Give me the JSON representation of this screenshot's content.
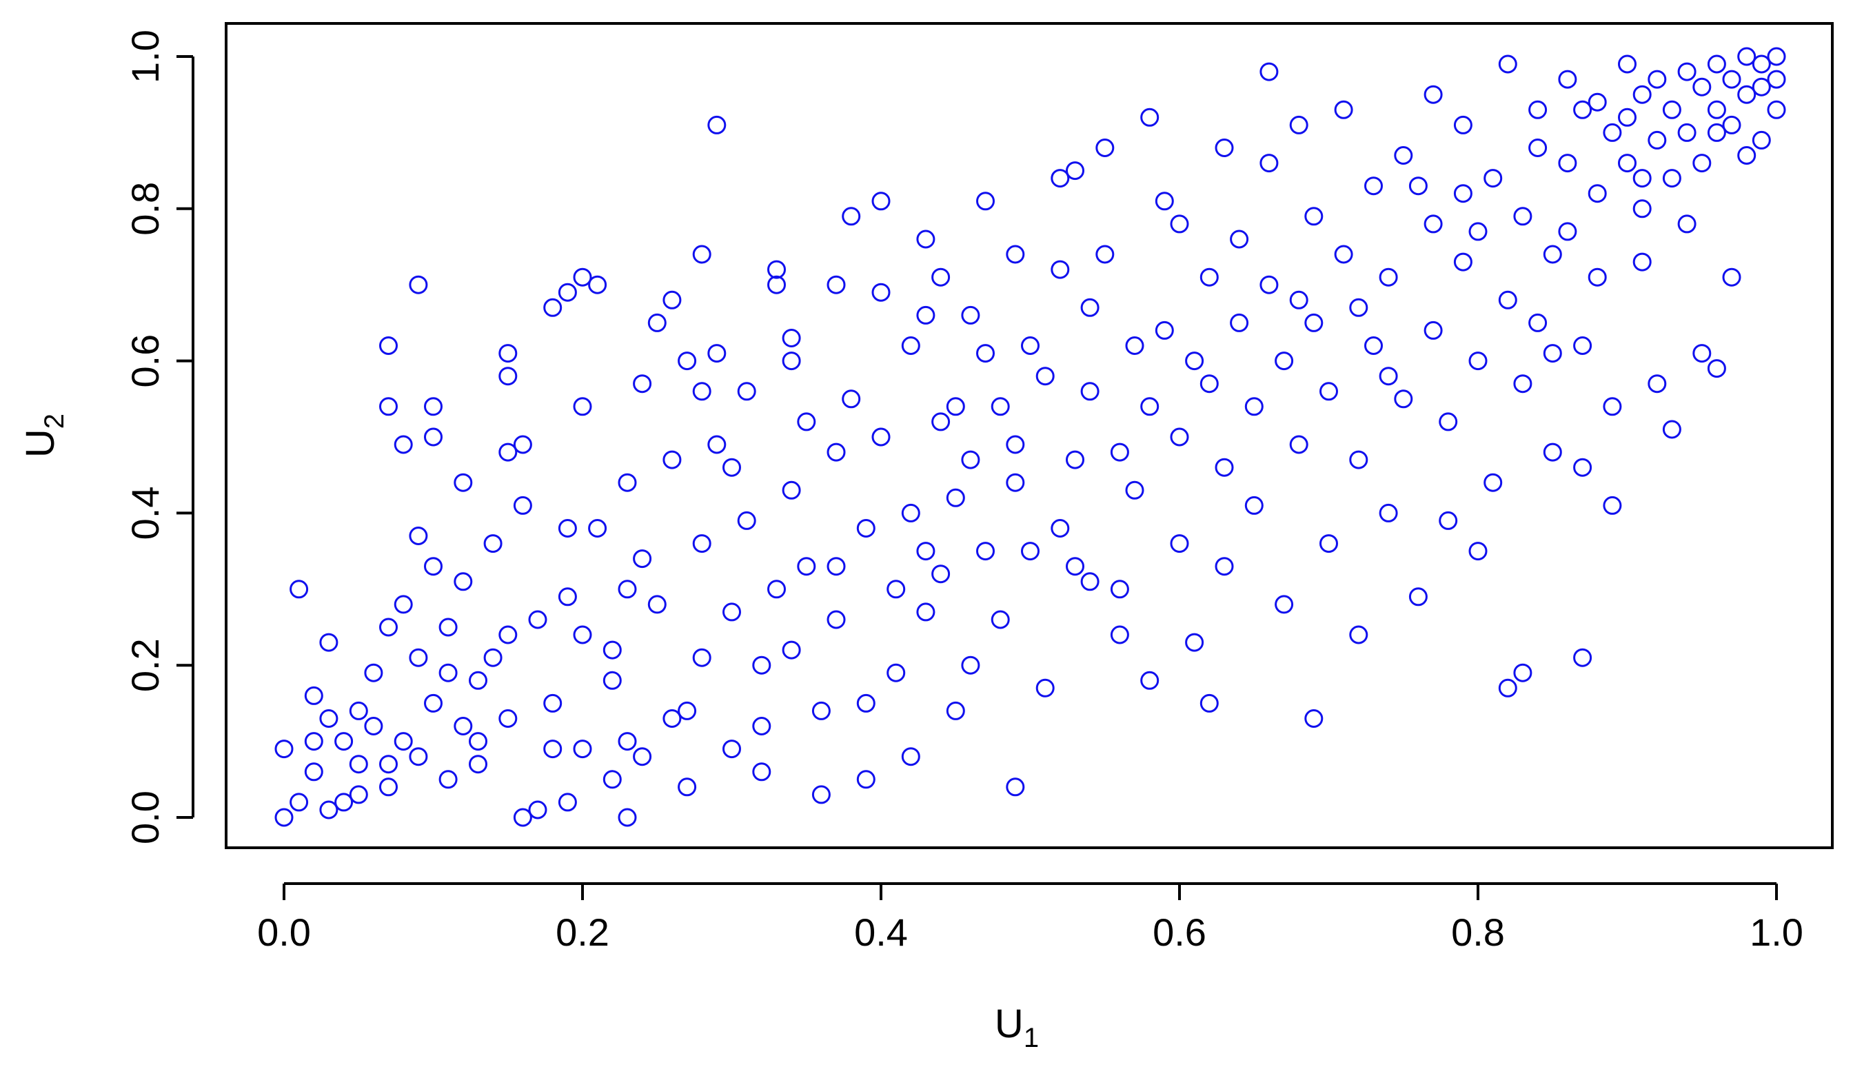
{
  "chart_data": {
    "type": "scatter",
    "title": "",
    "xlabel": {
      "base": "U",
      "sub": "1"
    },
    "ylabel": {
      "base": "U",
      "sub": "2"
    },
    "xlim": [
      0.0,
      1.0
    ],
    "ylim": [
      0.0,
      1.0
    ],
    "x_ticks": [
      "0.0",
      "0.2",
      "0.4",
      "0.6",
      "0.8",
      "1.0"
    ],
    "y_ticks": [
      "0.0",
      "0.2",
      "0.4",
      "0.6",
      "0.8",
      "1.0"
    ],
    "x_tick_values": [
      0.0,
      0.2,
      0.4,
      0.6,
      0.8,
      1.0
    ],
    "y_tick_values": [
      0.0,
      0.2,
      0.4,
      0.6,
      0.8,
      1.0
    ],
    "grid": false,
    "legend": "none",
    "marker": "open-circle",
    "marker_color": "#1010ee",
    "points": [
      [
        0.0,
        0.09
      ],
      [
        0.0,
        0.0
      ],
      [
        0.01,
        0.02
      ],
      [
        0.01,
        0.3
      ],
      [
        0.02,
        0.06
      ],
      [
        0.02,
        0.16
      ],
      [
        0.03,
        0.23
      ],
      [
        0.03,
        0.13
      ],
      [
        0.03,
        0.01
      ],
      [
        0.04,
        0.1
      ],
      [
        0.05,
        0.07
      ],
      [
        0.05,
        0.14
      ],
      [
        0.05,
        0.03
      ],
      [
        0.06,
        0.19
      ],
      [
        0.06,
        0.12
      ],
      [
        0.07,
        0.62
      ],
      [
        0.07,
        0.54
      ],
      [
        0.07,
        0.25
      ],
      [
        0.07,
        0.04
      ],
      [
        0.08,
        0.49
      ],
      [
        0.08,
        0.28
      ],
      [
        0.08,
        0.1
      ],
      [
        0.09,
        0.7
      ],
      [
        0.09,
        0.37
      ],
      [
        0.09,
        0.21
      ],
      [
        0.09,
        0.08
      ],
      [
        0.1,
        0.54
      ],
      [
        0.1,
        0.5
      ],
      [
        0.1,
        0.33
      ],
      [
        0.1,
        0.15
      ],
      [
        0.11,
        0.25
      ],
      [
        0.11,
        0.05
      ],
      [
        0.12,
        0.44
      ],
      [
        0.12,
        0.31
      ],
      [
        0.12,
        0.12
      ],
      [
        0.13,
        0.18
      ],
      [
        0.13,
        0.07
      ],
      [
        0.14,
        0.36
      ],
      [
        0.14,
        0.21
      ],
      [
        0.15,
        0.61
      ],
      [
        0.15,
        0.58
      ],
      [
        0.15,
        0.48
      ],
      [
        0.15,
        0.13
      ],
      [
        0.16,
        0.49
      ],
      [
        0.16,
        0.41
      ],
      [
        0.16,
        0.0
      ],
      [
        0.17,
        0.01
      ],
      [
        0.17,
        0.26
      ],
      [
        0.18,
        0.67
      ],
      [
        0.18,
        0.15
      ],
      [
        0.19,
        0.69
      ],
      [
        0.19,
        0.38
      ],
      [
        0.19,
        0.29
      ],
      [
        0.2,
        0.71
      ],
      [
        0.2,
        0.54
      ],
      [
        0.2,
        0.24
      ],
      [
        0.2,
        0.09
      ],
      [
        0.21,
        0.7
      ],
      [
        0.21,
        0.38
      ],
      [
        0.22,
        0.18
      ],
      [
        0.22,
        0.05
      ],
      [
        0.23,
        0.44
      ],
      [
        0.23,
        0.3
      ],
      [
        0.23,
        0.1
      ],
      [
        0.23,
        0.0
      ],
      [
        0.24,
        0.57
      ],
      [
        0.24,
        0.34
      ],
      [
        0.25,
        0.65
      ],
      [
        0.25,
        0.28
      ],
      [
        0.26,
        0.68
      ],
      [
        0.26,
        0.47
      ],
      [
        0.26,
        0.13
      ],
      [
        0.27,
        0.6
      ],
      [
        0.27,
        0.04
      ],
      [
        0.28,
        0.74
      ],
      [
        0.28,
        0.36
      ],
      [
        0.28,
        0.21
      ],
      [
        0.29,
        0.61
      ],
      [
        0.29,
        0.49
      ],
      [
        0.29,
        0.91
      ],
      [
        0.3,
        0.46
      ],
      [
        0.3,
        0.27
      ],
      [
        0.3,
        0.09
      ],
      [
        0.31,
        0.56
      ],
      [
        0.31,
        0.39
      ],
      [
        0.32,
        0.12
      ],
      [
        0.32,
        0.06
      ],
      [
        0.33,
        0.72
      ],
      [
        0.33,
        0.7
      ],
      [
        0.33,
        0.3
      ],
      [
        0.34,
        0.6
      ],
      [
        0.34,
        0.43
      ],
      [
        0.34,
        0.22
      ],
      [
        0.35,
        0.52
      ],
      [
        0.35,
        0.33
      ],
      [
        0.36,
        0.14
      ],
      [
        0.36,
        0.03
      ],
      [
        0.37,
        0.7
      ],
      [
        0.37,
        0.48
      ],
      [
        0.37,
        0.26
      ],
      [
        0.38,
        0.79
      ],
      [
        0.38,
        0.55
      ],
      [
        0.39,
        0.38
      ],
      [
        0.39,
        0.05
      ],
      [
        0.4,
        0.81
      ],
      [
        0.4,
        0.69
      ],
      [
        0.4,
        0.5
      ],
      [
        0.41,
        0.3
      ],
      [
        0.41,
        0.19
      ],
      [
        0.42,
        0.62
      ],
      [
        0.42,
        0.4
      ],
      [
        0.42,
        0.08
      ],
      [
        0.43,
        0.76
      ],
      [
        0.43,
        0.66
      ],
      [
        0.43,
        0.27
      ],
      [
        0.44,
        0.52
      ],
      [
        0.44,
        0.32
      ],
      [
        0.45,
        0.54
      ],
      [
        0.45,
        0.42
      ],
      [
        0.45,
        0.14
      ],
      [
        0.46,
        0.66
      ],
      [
        0.46,
        0.47
      ],
      [
        0.47,
        0.81
      ],
      [
        0.47,
        0.61
      ],
      [
        0.47,
        0.35
      ],
      [
        0.48,
        0.26
      ],
      [
        0.49,
        0.74
      ],
      [
        0.49,
        0.49
      ],
      [
        0.49,
        0.44
      ],
      [
        0.49,
        0.04
      ],
      [
        0.5,
        0.62
      ],
      [
        0.5,
        0.35
      ],
      [
        0.51,
        0.58
      ],
      [
        0.51,
        0.17
      ],
      [
        0.52,
        0.84
      ],
      [
        0.52,
        0.72
      ],
      [
        0.53,
        0.47
      ],
      [
        0.53,
        0.33
      ],
      [
        0.54,
        0.67
      ],
      [
        0.54,
        0.56
      ],
      [
        0.54,
        0.31
      ],
      [
        0.55,
        0.88
      ],
      [
        0.55,
        0.74
      ],
      [
        0.56,
        0.48
      ],
      [
        0.56,
        0.3
      ],
      [
        0.57,
        0.62
      ],
      [
        0.57,
        0.43
      ],
      [
        0.58,
        0.18
      ],
      [
        0.58,
        0.54
      ],
      [
        0.59,
        0.81
      ],
      [
        0.59,
        0.64
      ],
      [
        0.6,
        0.78
      ],
      [
        0.6,
        0.5
      ],
      [
        0.6,
        0.36
      ],
      [
        0.61,
        0.23
      ],
      [
        0.62,
        0.71
      ],
      [
        0.62,
        0.57
      ],
      [
        0.62,
        0.15
      ],
      [
        0.63,
        0.46
      ],
      [
        0.63,
        0.33
      ],
      [
        0.64,
        0.76
      ],
      [
        0.64,
        0.65
      ],
      [
        0.65,
        0.54
      ],
      [
        0.65,
        0.41
      ],
      [
        0.66,
        0.86
      ],
      [
        0.66,
        0.7
      ],
      [
        0.67,
        0.6
      ],
      [
        0.67,
        0.28
      ],
      [
        0.68,
        0.91
      ],
      [
        0.68,
        0.49
      ],
      [
        0.69,
        0.79
      ],
      [
        0.69,
        0.65
      ],
      [
        0.69,
        0.13
      ],
      [
        0.7,
        0.56
      ],
      [
        0.7,
        0.36
      ],
      [
        0.71,
        0.93
      ],
      [
        0.71,
        0.74
      ],
      [
        0.72,
        0.47
      ],
      [
        0.72,
        0.24
      ],
      [
        0.73,
        0.83
      ],
      [
        0.73,
        0.62
      ],
      [
        0.74,
        0.71
      ],
      [
        0.74,
        0.4
      ],
      [
        0.75,
        0.87
      ],
      [
        0.75,
        0.55
      ],
      [
        0.76,
        0.29
      ],
      [
        0.77,
        0.95
      ],
      [
        0.77,
        0.78
      ],
      [
        0.77,
        0.64
      ],
      [
        0.78,
        0.52
      ],
      [
        0.78,
        0.39
      ],
      [
        0.79,
        0.91
      ],
      [
        0.79,
        0.73
      ],
      [
        0.8,
        0.6
      ],
      [
        0.8,
        0.35
      ],
      [
        0.81,
        0.84
      ],
      [
        0.81,
        0.44
      ],
      [
        0.82,
        0.99
      ],
      [
        0.82,
        0.68
      ],
      [
        0.82,
        0.17
      ],
      [
        0.83,
        0.79
      ],
      [
        0.83,
        0.57
      ],
      [
        0.83,
        0.19
      ],
      [
        0.84,
        0.93
      ],
      [
        0.84,
        0.88
      ],
      [
        0.84,
        0.65
      ],
      [
        0.85,
        0.48
      ],
      [
        0.85,
        0.74
      ],
      [
        0.86,
        0.97
      ],
      [
        0.86,
        0.86
      ],
      [
        0.86,
        0.77
      ],
      [
        0.87,
        0.62
      ],
      [
        0.87,
        0.46
      ],
      [
        0.87,
        0.21
      ],
      [
        0.88,
        0.94
      ],
      [
        0.88,
        0.82
      ],
      [
        0.88,
        0.71
      ],
      [
        0.89,
        0.9
      ],
      [
        0.89,
        0.54
      ],
      [
        0.89,
        0.41
      ],
      [
        0.9,
        0.99
      ],
      [
        0.9,
        0.92
      ],
      [
        0.9,
        0.86
      ],
      [
        0.91,
        0.95
      ],
      [
        0.91,
        0.8
      ],
      [
        0.91,
        0.73
      ],
      [
        0.92,
        0.97
      ],
      [
        0.92,
        0.89
      ],
      [
        0.92,
        0.57
      ],
      [
        0.93,
        0.93
      ],
      [
        0.93,
        0.84
      ],
      [
        0.93,
        0.51
      ],
      [
        0.94,
        0.98
      ],
      [
        0.94,
        0.9
      ],
      [
        0.94,
        0.78
      ],
      [
        0.95,
        0.96
      ],
      [
        0.95,
        0.86
      ],
      [
        0.95,
        0.61
      ],
      [
        0.96,
        0.99
      ],
      [
        0.96,
        0.93
      ],
      [
        0.96,
        0.59
      ],
      [
        0.97,
        0.97
      ],
      [
        0.97,
        0.91
      ],
      [
        0.97,
        0.71
      ],
      [
        0.98,
        1.0
      ],
      [
        0.98,
        0.95
      ],
      [
        0.98,
        0.87
      ],
      [
        0.99,
        0.99
      ],
      [
        0.99,
        0.96
      ],
      [
        0.99,
        0.89
      ],
      [
        1.0,
        1.0
      ],
      [
        1.0,
        0.97
      ],
      [
        1.0,
        0.93
      ],
      [
        0.96,
        0.9
      ],
      [
        0.91,
        0.84
      ],
      [
        0.87,
        0.93
      ],
      [
        0.79,
        0.82
      ],
      [
        0.74,
        0.58
      ],
      [
        0.68,
        0.68
      ],
      [
        0.61,
        0.6
      ],
      [
        0.56,
        0.24
      ],
      [
        0.52,
        0.38
      ],
      [
        0.46,
        0.2
      ],
      [
        0.43,
        0.35
      ],
      [
        0.37,
        0.33
      ],
      [
        0.32,
        0.2
      ],
      [
        0.27,
        0.14
      ],
      [
        0.22,
        0.22
      ],
      [
        0.18,
        0.09
      ],
      [
        0.13,
        0.1
      ],
      [
        0.11,
        0.19
      ],
      [
        0.07,
        0.07
      ],
      [
        0.04,
        0.02
      ],
      [
        0.02,
        0.1
      ],
      [
        0.15,
        0.24
      ],
      [
        0.19,
        0.02
      ],
      [
        0.24,
        0.08
      ],
      [
        0.28,
        0.56
      ],
      [
        0.34,
        0.63
      ],
      [
        0.39,
        0.15
      ],
      [
        0.44,
        0.71
      ],
      [
        0.48,
        0.54
      ],
      [
        0.53,
        0.85
      ],
      [
        0.58,
        0.92
      ],
      [
        0.63,
        0.88
      ],
      [
        0.66,
        0.98
      ],
      [
        0.72,
        0.67
      ],
      [
        0.76,
        0.83
      ],
      [
        0.8,
        0.77
      ],
      [
        0.85,
        0.61
      ]
    ]
  }
}
